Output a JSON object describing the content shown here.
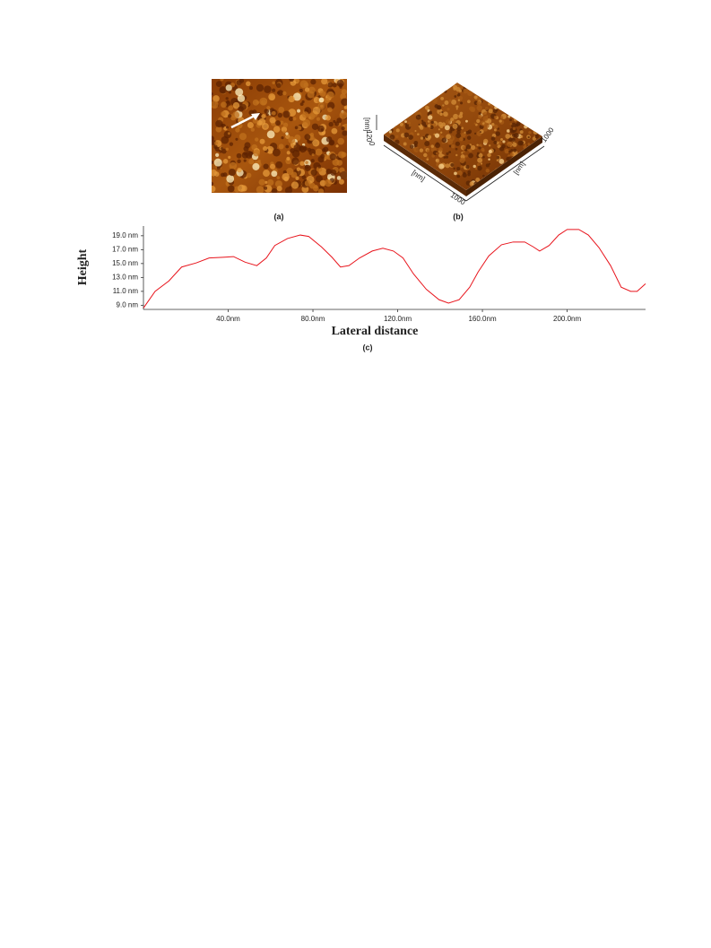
{
  "figure": {
    "panel_a": {
      "label": "(a)"
    },
    "panel_b": {
      "label": "(b)",
      "axis_labels": [
        "[nm]",
        "[nm]",
        "[nm]"
      ],
      "tick_labels": [
        "120",
        "0",
        "1000",
        "1000"
      ]
    }
  },
  "chart_data": {
    "type": "line",
    "caption": "(c)",
    "xlabel": "Lateral distance",
    "ylabel": "Height",
    "color": "#e8141c",
    "x": [
      0,
      5.5,
      12,
      18,
      25,
      31,
      37.5,
      42.5,
      48,
      53.5,
      58,
      62,
      68,
      74,
      78,
      84,
      89,
      93,
      97,
      102,
      108,
      113,
      118,
      122.5,
      127.5,
      133.5,
      139.5,
      144,
      149,
      154,
      158,
      163,
      169,
      174.5,
      180,
      184,
      187,
      191.5,
      196,
      200,
      205.5,
      210,
      215,
      220.5,
      225.5,
      230,
      233,
      237
    ],
    "values": [
      8.6,
      11.0,
      12.5,
      14.5,
      15.1,
      15.8,
      15.9,
      16.0,
      15.2,
      14.7,
      15.8,
      17.6,
      18.6,
      19.1,
      18.9,
      17.4,
      15.9,
      14.5,
      14.7,
      15.8,
      16.8,
      17.2,
      16.8,
      15.8,
      13.5,
      11.3,
      9.8,
      9.3,
      9.8,
      11.6,
      13.8,
      16.1,
      17.7,
      18.1,
      18.1,
      17.4,
      16.8,
      17.6,
      19.1,
      19.9,
      19.9,
      19.1,
      17.3,
      14.7,
      11.6,
      11.0,
      11.0,
      12.1
    ],
    "xlim": [
      0,
      237
    ],
    "ylim": [
      8.4,
      20.4
    ],
    "xticks": [
      {
        "value": 40,
        "label": "40.0nm"
      },
      {
        "value": 80,
        "label": "80.0nm"
      },
      {
        "value": 120,
        "label": "120.0nm"
      },
      {
        "value": 160,
        "label": "160.0nm"
      },
      {
        "value": 200,
        "label": "200.0nm"
      }
    ],
    "yticks": [
      {
        "value": 9,
        "label": "9.0 nm"
      },
      {
        "value": 11,
        "label": "11.0 nm"
      },
      {
        "value": 13,
        "label": "13.0 nm"
      },
      {
        "value": 15,
        "label": "15.0 nm"
      },
      {
        "value": 17,
        "label": "17.0 nm"
      },
      {
        "value": 19,
        "label": "19.0 nm"
      }
    ]
  }
}
